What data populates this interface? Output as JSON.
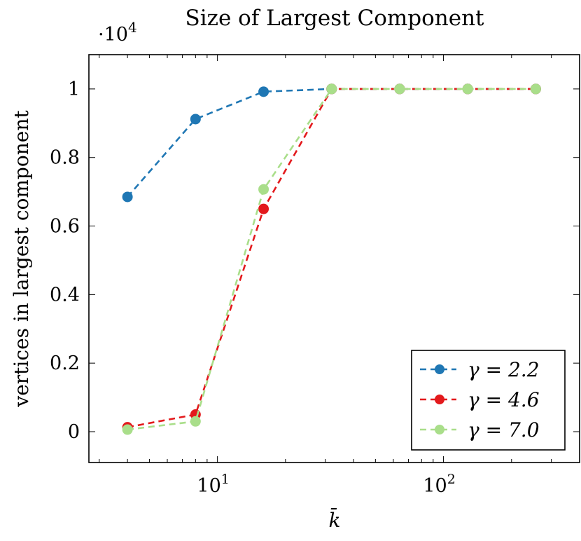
{
  "chart_data": {
    "type": "line",
    "title": "Size of Largest Component",
    "xlabel": "k̄",
    "ylabel": "vertices in largest component",
    "x_scale": "log",
    "xlim": [
      2.7,
      400
    ],
    "ylim": [
      -0.09,
      1.1
    ],
    "y_multiplier": "·10",
    "y_multiplier_exp": "4",
    "x_ticks": [
      {
        "value": 10,
        "base": "10",
        "exp": "1"
      },
      {
        "value": 100,
        "base": "10",
        "exp": "2"
      }
    ],
    "y_ticks": [
      {
        "value": 0,
        "label": "0"
      },
      {
        "value": 0.2,
        "label": "0.2"
      },
      {
        "value": 0.4,
        "label": "0.4"
      },
      {
        "value": 0.6,
        "label": "0.6"
      },
      {
        "value": 0.8,
        "label": "0.8"
      },
      {
        "value": 1,
        "label": "1"
      }
    ],
    "grid": false,
    "legend_position": "bottom-right",
    "x": [
      4,
      8,
      16,
      32,
      64,
      128,
      256
    ],
    "series": [
      {
        "name": "γ = 2.2",
        "color": "#1f77b4",
        "values": [
          0.685,
          0.912,
          0.992,
          1.0,
          1.0,
          1.0,
          1.0
        ]
      },
      {
        "name": "γ = 4.6",
        "color": "#e3191c",
        "values": [
          0.013,
          0.05,
          0.65,
          1.0,
          1.0,
          1.0,
          1.0
        ]
      },
      {
        "name": "γ = 7.0",
        "color": "#a9de8a",
        "values": [
          0.006,
          0.03,
          0.707,
          1.0,
          1.0,
          1.0,
          1.0
        ]
      }
    ]
  }
}
